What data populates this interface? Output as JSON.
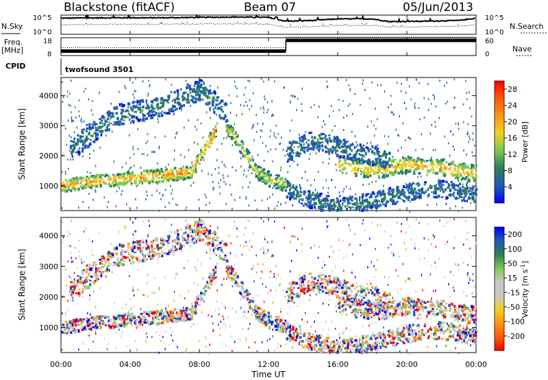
{
  "header": {
    "station": "Blackstone (fitACF)",
    "beam": "Beam 07",
    "date": "05/Jun/2013"
  },
  "panels": {
    "nsky": {
      "label": "N.Sky",
      "ticks": [
        "10^5",
        "10^0"
      ],
      "right_label": "N.Search",
      "right_ticks": [
        "10^5",
        "10^0"
      ]
    },
    "freq": {
      "label_line1": "Freq.",
      "label_line2": "[MHz]",
      "ticks": [
        "18",
        "8"
      ],
      "right_label": "Nave",
      "right_ticks": [
        "60",
        "0"
      ]
    },
    "cpid": {
      "label": "CPID",
      "program": "twofsound 3501"
    }
  },
  "time_axis": {
    "ticks": [
      "00:00",
      "04:00",
      "08:00",
      "12:00",
      "16:00",
      "20:00",
      "00:00"
    ],
    "label": "Time UT"
  },
  "colors": {
    "power_scale": [
      "#0000ff",
      "#1f5ab4",
      "#2f7d5a",
      "#78c850",
      "#f0d21e",
      "#ff9614",
      "#ff5a00",
      "#ff0000"
    ],
    "velocity_scale": [
      "#ff0000",
      "#ff5a00",
      "#ff9614",
      "#f0d21e",
      "#c8c8c8",
      "#c8c8c8",
      "#78c850",
      "#2f7d5a",
      "#1f5ab4",
      "#0000ff"
    ]
  },
  "chart_data": [
    {
      "type": "line",
      "title": "N.Sky / N.Search",
      "x": [
        0,
        3,
        6,
        8,
        10,
        12,
        13,
        14.5,
        16,
        18,
        19,
        21,
        23,
        24
      ],
      "series": [
        {
          "name": "N.Sky",
          "values": [
            4.2,
            4.3,
            4.3,
            4.4,
            4.5,
            4.4,
            3.4,
            3.6,
            4.0,
            4.0,
            3.3,
            3.4,
            3.6,
            4.2
          ]
        },
        {
          "name": "N.Search",
          "values": [
            2.5,
            2.6,
            2.6,
            2.7,
            2.7,
            2.6,
            1.8,
            2.0,
            2.3,
            2.3,
            1.9,
            2.0,
            2.1,
            2.5
          ]
        }
      ],
      "ylim_exp": [
        0,
        5
      ],
      "xlim": [
        0,
        24
      ]
    },
    {
      "type": "line",
      "title": "Freq./Nave",
      "segments": [
        {
          "name": "Freq.",
          "x0": 0,
          "x1": 13,
          "value": 10.5
        },
        {
          "name": "Freq.",
          "x0": 13,
          "x1": 24,
          "value": 16.5
        }
      ],
      "ylim": [
        8,
        18
      ],
      "xlim": [
        0,
        24
      ]
    },
    {
      "type": "heatmap",
      "ylabel": "Slant Range [km]",
      "colorbar_label": "Power [dB]",
      "colorbar_ticks": [
        "28",
        "24",
        "20",
        "16",
        "12",
        "8",
        "4"
      ],
      "yticks": [
        "4000",
        "3000",
        "2000",
        "1000"
      ],
      "ylim": [
        180,
        4600
      ],
      "xlim": [
        0,
        24
      ],
      "echo_bands": [
        {
          "t": [
            0,
            2,
            4,
            6,
            7.5,
            8.3,
            9.0
          ],
          "r": [
            1000,
            1150,
            1250,
            1350,
            1450,
            2300,
            2900
          ],
          "width": 300,
          "power": 22
        },
        {
          "t": [
            9.5,
            10.5,
            11.2,
            12,
            13
          ],
          "r": [
            3000,
            2200,
            1500,
            1200,
            1050
          ],
          "width": 350,
          "power": 16
        },
        {
          "t": [
            13,
            14,
            16,
            18,
            20,
            22,
            24
          ],
          "r": [
            900,
            600,
            300,
            500,
            800,
            900,
            700
          ],
          "width": 400,
          "power": 8
        },
        {
          "t": [
            16,
            18,
            20,
            22,
            24
          ],
          "r": [
            1700,
            1500,
            1700,
            1600,
            1400
          ],
          "width": 400,
          "power": 20
        },
        {
          "t": [
            0.5,
            3,
            6,
            8,
            9.5
          ],
          "r": [
            2200,
            3300,
            3700,
            4200,
            3400
          ],
          "width": 500,
          "power": 8
        },
        {
          "t": [
            13,
            14.5,
            16,
            17,
            19
          ],
          "r": [
            2100,
            2500,
            2300,
            2100,
            1900
          ],
          "width": 450,
          "power": 8
        }
      ]
    },
    {
      "type": "heatmap",
      "ylabel": "Slant Range [km]",
      "colorbar_label": "Velocity [m s-1]",
      "colorbar_ticks": [
        "200",
        "100",
        "50",
        "15",
        "-15",
        "-50",
        "-100",
        "-200"
      ],
      "yticks": [
        "4000",
        "3000",
        "2000",
        "1000"
      ],
      "ylim": [
        180,
        4600
      ],
      "xlim": [
        0,
        24
      ]
    }
  ]
}
